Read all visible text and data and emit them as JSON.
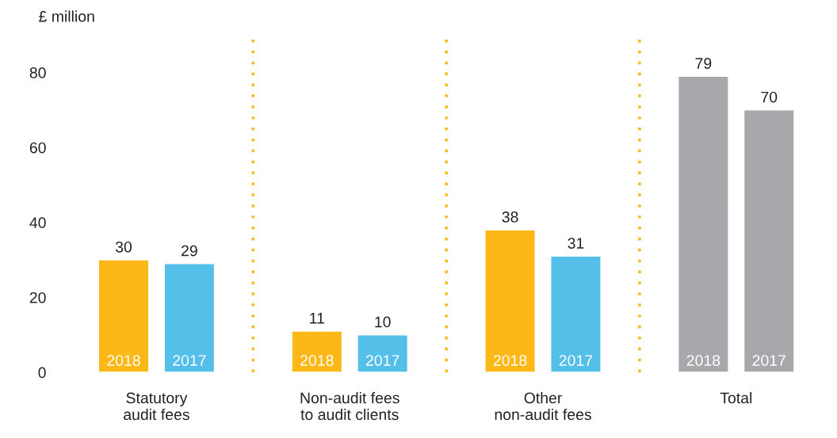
{
  "chart_data": {
    "type": "bar",
    "ylabel": "£ million",
    "categories": [
      "Statutory\naudit fees",
      "Non-audit fees\nto audit clients",
      "Other\nnon-audit fees",
      "Total"
    ],
    "series": [
      {
        "name": "2018",
        "colors": [
          "#fbb817",
          "#fbb817",
          "#fbb817",
          "#a7a8ab"
        ],
        "values": [
          30,
          11,
          38,
          79
        ]
      },
      {
        "name": "2017",
        "colors": [
          "#54c0ea",
          "#54c0ea",
          "#54c0ea",
          "#a7a8ab"
        ],
        "values": [
          29,
          10,
          31,
          70
        ]
      }
    ],
    "ylim": [
      0,
      90
    ],
    "yticks": [
      0,
      20,
      40,
      60,
      80
    ],
    "data_labels": true,
    "grid": false,
    "legend": false
  }
}
